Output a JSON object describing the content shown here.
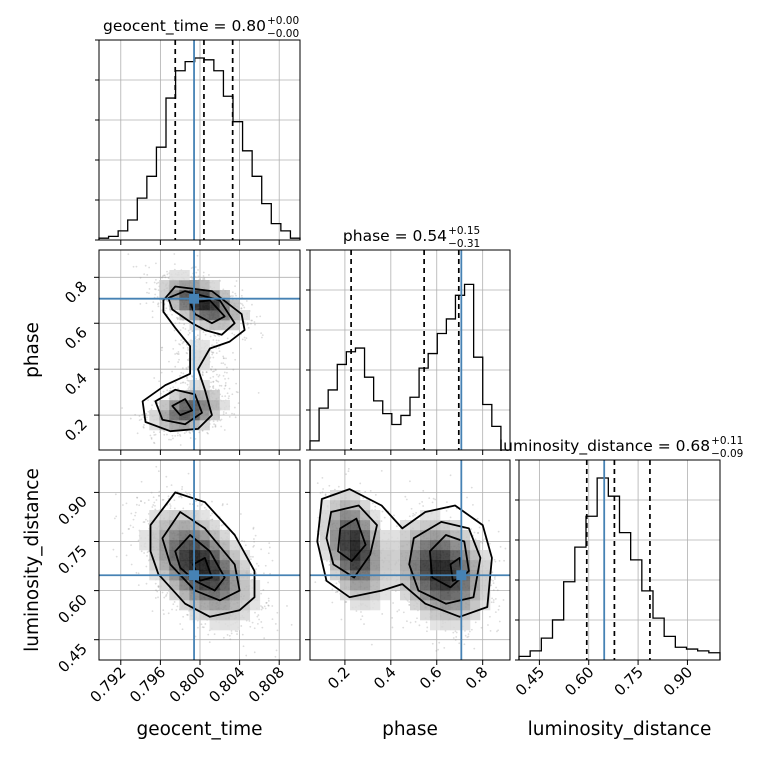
{
  "colors": {
    "truth": "#4682b4",
    "contour": "#000000",
    "grid": "#b0b0b0",
    "scatter": "#9a9a9a"
  },
  "chart_data": {
    "type": "corner",
    "parameters": [
      "geocent_time",
      "phase",
      "luminosity_distance"
    ],
    "truths": {
      "geocent_time": 0.7994,
      "phase": 0.707,
      "luminosity_distance": 0.647
    },
    "ranges": {
      "geocent_time": [
        0.7898,
        0.8101
      ],
      "phase": [
        0.048,
        0.919
      ],
      "luminosity_distance": [
        0.388,
        0.999
      ]
    },
    "titles": {
      "geocent_time": {
        "label": "geocent_time = 0.80",
        "plus": "+0.00",
        "minus": "−0.00"
      },
      "phase": {
        "label": "phase = 0.54",
        "plus": "+0.15",
        "minus": "−0.31"
      },
      "luminosity_distance": {
        "label": "luminosity_distance = 0.68",
        "plus": "+0.11",
        "minus": "−0.09"
      }
    },
    "ticks": {
      "geocent_time": {
        "values": [
          0.792,
          0.796,
          0.8,
          0.804,
          0.808
        ],
        "labels": [
          "0.792",
          "0.796",
          "0.800",
          "0.804",
          "0.808"
        ]
      },
      "phase": {
        "values": [
          0.2,
          0.4,
          0.6,
          0.8
        ],
        "labels": [
          "0.2",
          "0.4",
          "0.6",
          "0.8"
        ]
      },
      "luminosity_distance": {
        "values": [
          0.45,
          0.6,
          0.75,
          0.9
        ],
        "labels": [
          "0.45",
          "0.60",
          "0.75",
          "0.90"
        ]
      }
    },
    "quantiles": {
      "geocent_time": [
        0.7975,
        0.8004,
        0.8033
      ],
      "phase": [
        0.227,
        0.545,
        0.696
      ],
      "luminosity_distance": [
        0.594,
        0.678,
        0.786
      ]
    },
    "histograms": {
      "geocent_time": [
        0.01,
        0.02,
        0.05,
        0.11,
        0.23,
        0.35,
        0.51,
        0.78,
        0.93,
        0.98,
        1.0,
        0.99,
        0.93,
        0.79,
        0.65,
        0.49,
        0.35,
        0.2,
        0.09,
        0.05,
        0.01
      ],
      "phase": [
        0.05,
        0.23,
        0.33,
        0.47,
        0.54,
        0.56,
        0.4,
        0.27,
        0.2,
        0.14,
        0.19,
        0.29,
        0.45,
        0.53,
        0.64,
        0.72,
        0.85,
        0.91,
        0.51,
        0.25,
        0.13,
        0.0
      ],
      "luminosity_distance": [
        0.02,
        0.05,
        0.12,
        0.22,
        0.43,
        0.62,
        0.79,
        1.0,
        0.9,
        0.7,
        0.55,
        0.38,
        0.23,
        0.13,
        0.07,
        0.06,
        0.05,
        0.04
      ]
    },
    "grid": true,
    "xlabels": [
      "geocent_time",
      "phase",
      "luminosity_distance"
    ],
    "ylabels": [
      "phase",
      "luminosity_distance"
    ]
  }
}
